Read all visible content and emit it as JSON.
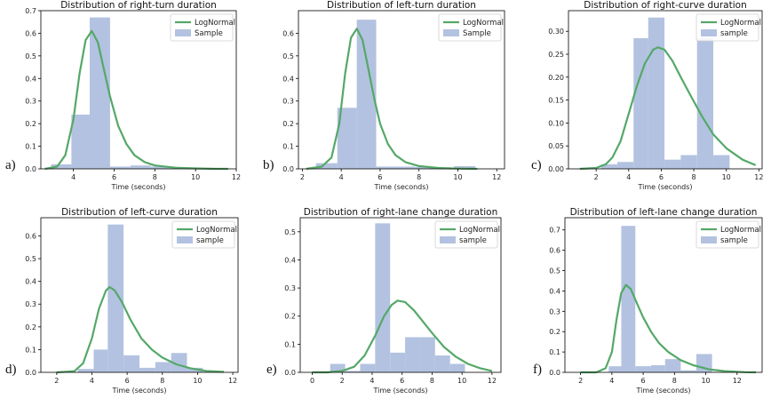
{
  "colors": {
    "curve": "#55a868",
    "bars": "#b3c2e0",
    "axis": "#000000"
  },
  "chart_data": [
    {
      "type": "bar",
      "letter": "a)",
      "title": "Distribution of right-turn duration",
      "xlabel": "Time (seconds)",
      "ylabel": "",
      "xlim": [
        2.4,
        12.0
      ],
      "ylim": [
        0,
        0.7
      ],
      "xticks": [
        4,
        6,
        8,
        10,
        12
      ],
      "yticks": [
        0.0,
        0.1,
        0.2,
        0.3,
        0.4,
        0.5,
        0.6,
        0.7
      ],
      "bin_edges": [
        2.9,
        3.9,
        4.8,
        5.8,
        6.8,
        7.8,
        8.7,
        9.7,
        10.6
      ],
      "values": [
        0.02,
        0.24,
        0.67,
        0.01,
        0.015,
        0.01,
        0.003,
        0.002
      ],
      "curve": {
        "name": "LogNormal",
        "x": [
          2.6,
          3.2,
          3.6,
          4.0,
          4.3,
          4.6,
          4.9,
          5.2,
          5.5,
          5.8,
          6.2,
          6.6,
          7.0,
          7.5,
          8.0,
          9.0,
          10.0,
          11.0,
          11.6
        ],
        "y": [
          0.0,
          0.01,
          0.06,
          0.22,
          0.42,
          0.57,
          0.61,
          0.56,
          0.44,
          0.32,
          0.19,
          0.11,
          0.06,
          0.03,
          0.015,
          0.005,
          0.002,
          0.0,
          0.0
        ]
      },
      "legend": [
        "LogNormal",
        "Sample"
      ],
      "legend_loc": "top-right"
    },
    {
      "type": "bar",
      "letter": "b)",
      "title": "Distribution of left-turn duration",
      "xlabel": "Time (seconds)",
      "ylabel": "",
      "xlim": [
        1.8,
        12.4
      ],
      "ylim": [
        0,
        0.7
      ],
      "xticks": [
        2,
        4,
        6,
        8,
        10,
        12
      ],
      "yticks": [
        0.0,
        0.1,
        0.2,
        0.3,
        0.4,
        0.5,
        0.6
      ],
      "bin_edges": [
        2.7,
        3.8,
        4.8,
        5.8,
        6.8,
        7.8,
        8.8,
        9.8,
        10.9
      ],
      "values": [
        0.025,
        0.27,
        0.66,
        0.01,
        0.01,
        0.008,
        0.003,
        0.012
      ],
      "curve": {
        "name": "LogNormal",
        "x": [
          2.2,
          3.0,
          3.5,
          3.9,
          4.2,
          4.5,
          4.8,
          5.1,
          5.4,
          5.7,
          6.0,
          6.4,
          6.8,
          7.3,
          8.0,
          9.0,
          10.0,
          11.0
        ],
        "y": [
          0.0,
          0.01,
          0.05,
          0.2,
          0.42,
          0.58,
          0.62,
          0.57,
          0.44,
          0.31,
          0.2,
          0.11,
          0.06,
          0.03,
          0.012,
          0.004,
          0.001,
          0.0
        ]
      },
      "legend": [
        "LogNormal",
        "Sample"
      ],
      "legend_loc": "top-right"
    },
    {
      "type": "bar",
      "letter": "c)",
      "title": "Distribution of right-curve duration",
      "xlabel": "Time (seconds)",
      "ylabel": "",
      "xlim": [
        0.3,
        12.2
      ],
      "ylim": [
        0,
        0.345
      ],
      "xticks": [
        2,
        4,
        6,
        8,
        10,
        12
      ],
      "yticks": [
        0.0,
        0.05,
        0.1,
        0.15,
        0.2,
        0.25,
        0.3
      ],
      "bin_edges": [
        2.3,
        3.3,
        4.3,
        5.2,
        6.2,
        7.2,
        8.2,
        9.2,
        10.2
      ],
      "values": [
        0.01,
        0.015,
        0.285,
        0.33,
        0.02,
        0.03,
        0.285,
        0.03
      ],
      "curve": {
        "name": "LogNormal",
        "x": [
          1.0,
          2.0,
          2.6,
          3.0,
          3.5,
          4.0,
          4.5,
          5.0,
          5.5,
          5.8,
          6.2,
          6.7,
          7.2,
          7.8,
          8.5,
          9.2,
          10.0,
          11.0,
          11.8
        ],
        "y": [
          0.0,
          0.002,
          0.01,
          0.025,
          0.06,
          0.12,
          0.18,
          0.23,
          0.26,
          0.265,
          0.26,
          0.235,
          0.2,
          0.16,
          0.115,
          0.075,
          0.045,
          0.02,
          0.008
        ]
      },
      "legend": [
        "LogNormal",
        "sample"
      ],
      "legend_loc": "top-right"
    },
    {
      "type": "bar",
      "letter": "d)",
      "title": "Distribution of left-curve duration",
      "xlabel": "Time (seconds)",
      "ylabel": "",
      "xlim": [
        1.1,
        12.3
      ],
      "ylim": [
        0,
        0.68
      ],
      "xticks": [
        2,
        4,
        6,
        8,
        10,
        12
      ],
      "yticks": [
        0.0,
        0.1,
        0.2,
        0.3,
        0.4,
        0.5,
        0.6
      ],
      "bin_edges": [
        3.2,
        4.1,
        4.9,
        5.8,
        6.7,
        7.6,
        8.5,
        9.4,
        10.3
      ],
      "values": [
        0.015,
        0.1,
        0.65,
        0.075,
        0.02,
        0.045,
        0.085,
        0.02
      ],
      "curve": {
        "name": "LogNormal",
        "x": [
          2.0,
          3.0,
          3.5,
          4.0,
          4.4,
          4.8,
          5.0,
          5.3,
          5.7,
          6.2,
          6.8,
          7.4,
          8.0,
          8.8,
          9.6,
          10.5,
          11.5
        ],
        "y": [
          0.0,
          0.005,
          0.04,
          0.15,
          0.28,
          0.36,
          0.375,
          0.36,
          0.31,
          0.23,
          0.15,
          0.1,
          0.065,
          0.035,
          0.018,
          0.006,
          0.002
        ]
      },
      "legend": [
        "LogNormal",
        "sample"
      ],
      "legend_loc": "top-right"
    },
    {
      "type": "bar",
      "letter": "e)",
      "title": "Distribution of right-lane change duration",
      "xlabel": "Time (seconds)",
      "ylabel": "",
      "xlim": [
        -0.8,
        12.6
      ],
      "ylim": [
        0,
        0.55
      ],
      "xticks": [
        0,
        2,
        4,
        6,
        8,
        10,
        12
      ],
      "yticks": [
        0.0,
        0.1,
        0.2,
        0.3,
        0.4,
        0.5
      ],
      "bin_edges": [
        1.2,
        2.2,
        3.2,
        4.2,
        5.2,
        6.2,
        7.2,
        8.2,
        9.2,
        10.2
      ],
      "values": [
        0.03,
        0.005,
        0.03,
        0.53,
        0.07,
        0.125,
        0.125,
        0.06,
        0.03
      ],
      "curve": {
        "name": "LogNormal",
        "x": [
          0.0,
          1.0,
          2.0,
          2.8,
          3.5,
          4.2,
          4.8,
          5.3,
          5.7,
          6.2,
          6.8,
          7.4,
          8.0,
          8.8,
          9.6,
          10.4,
          11.2,
          12.0
        ],
        "y": [
          0.0,
          0.0,
          0.005,
          0.02,
          0.06,
          0.13,
          0.2,
          0.24,
          0.255,
          0.25,
          0.22,
          0.18,
          0.14,
          0.09,
          0.055,
          0.03,
          0.015,
          0.005
        ]
      },
      "legend": [
        "LogNormal",
        "sample"
      ],
      "legend_loc": "top-right"
    },
    {
      "type": "bar",
      "letter": "f)",
      "title": "Distribution of left-lane change duration",
      "xlabel": "Time (seconds)",
      "ylabel": "",
      "xlim": [
        1.0,
        13.6
      ],
      "ylim": [
        0,
        0.76
      ],
      "xticks": [
        2,
        4,
        6,
        8,
        10,
        12
      ],
      "yticks": [
        0.0,
        0.1,
        0.2,
        0.3,
        0.4,
        0.5,
        0.6,
        0.7
      ],
      "bin_edges": [
        3.8,
        4.6,
        5.5,
        6.5,
        7.4,
        8.4,
        9.4,
        10.4
      ],
      "values": [
        0.03,
        0.72,
        0.03,
        0.035,
        0.065,
        0.01,
        0.09
      ],
      "curve": {
        "name": "LogNormal",
        "x": [
          2.0,
          3.0,
          3.6,
          4.0,
          4.3,
          4.6,
          4.9,
          5.2,
          5.6,
          6.0,
          6.5,
          7.0,
          7.6,
          8.4,
          9.2,
          10.2,
          11.2,
          12.5,
          13.2
        ],
        "y": [
          0.0,
          0.0,
          0.02,
          0.1,
          0.26,
          0.39,
          0.43,
          0.41,
          0.34,
          0.27,
          0.2,
          0.145,
          0.1,
          0.06,
          0.035,
          0.015,
          0.006,
          0.001,
          0.0
        ]
      },
      "legend": [
        "LogNormal",
        "sample"
      ],
      "legend_loc": "top-right"
    }
  ]
}
